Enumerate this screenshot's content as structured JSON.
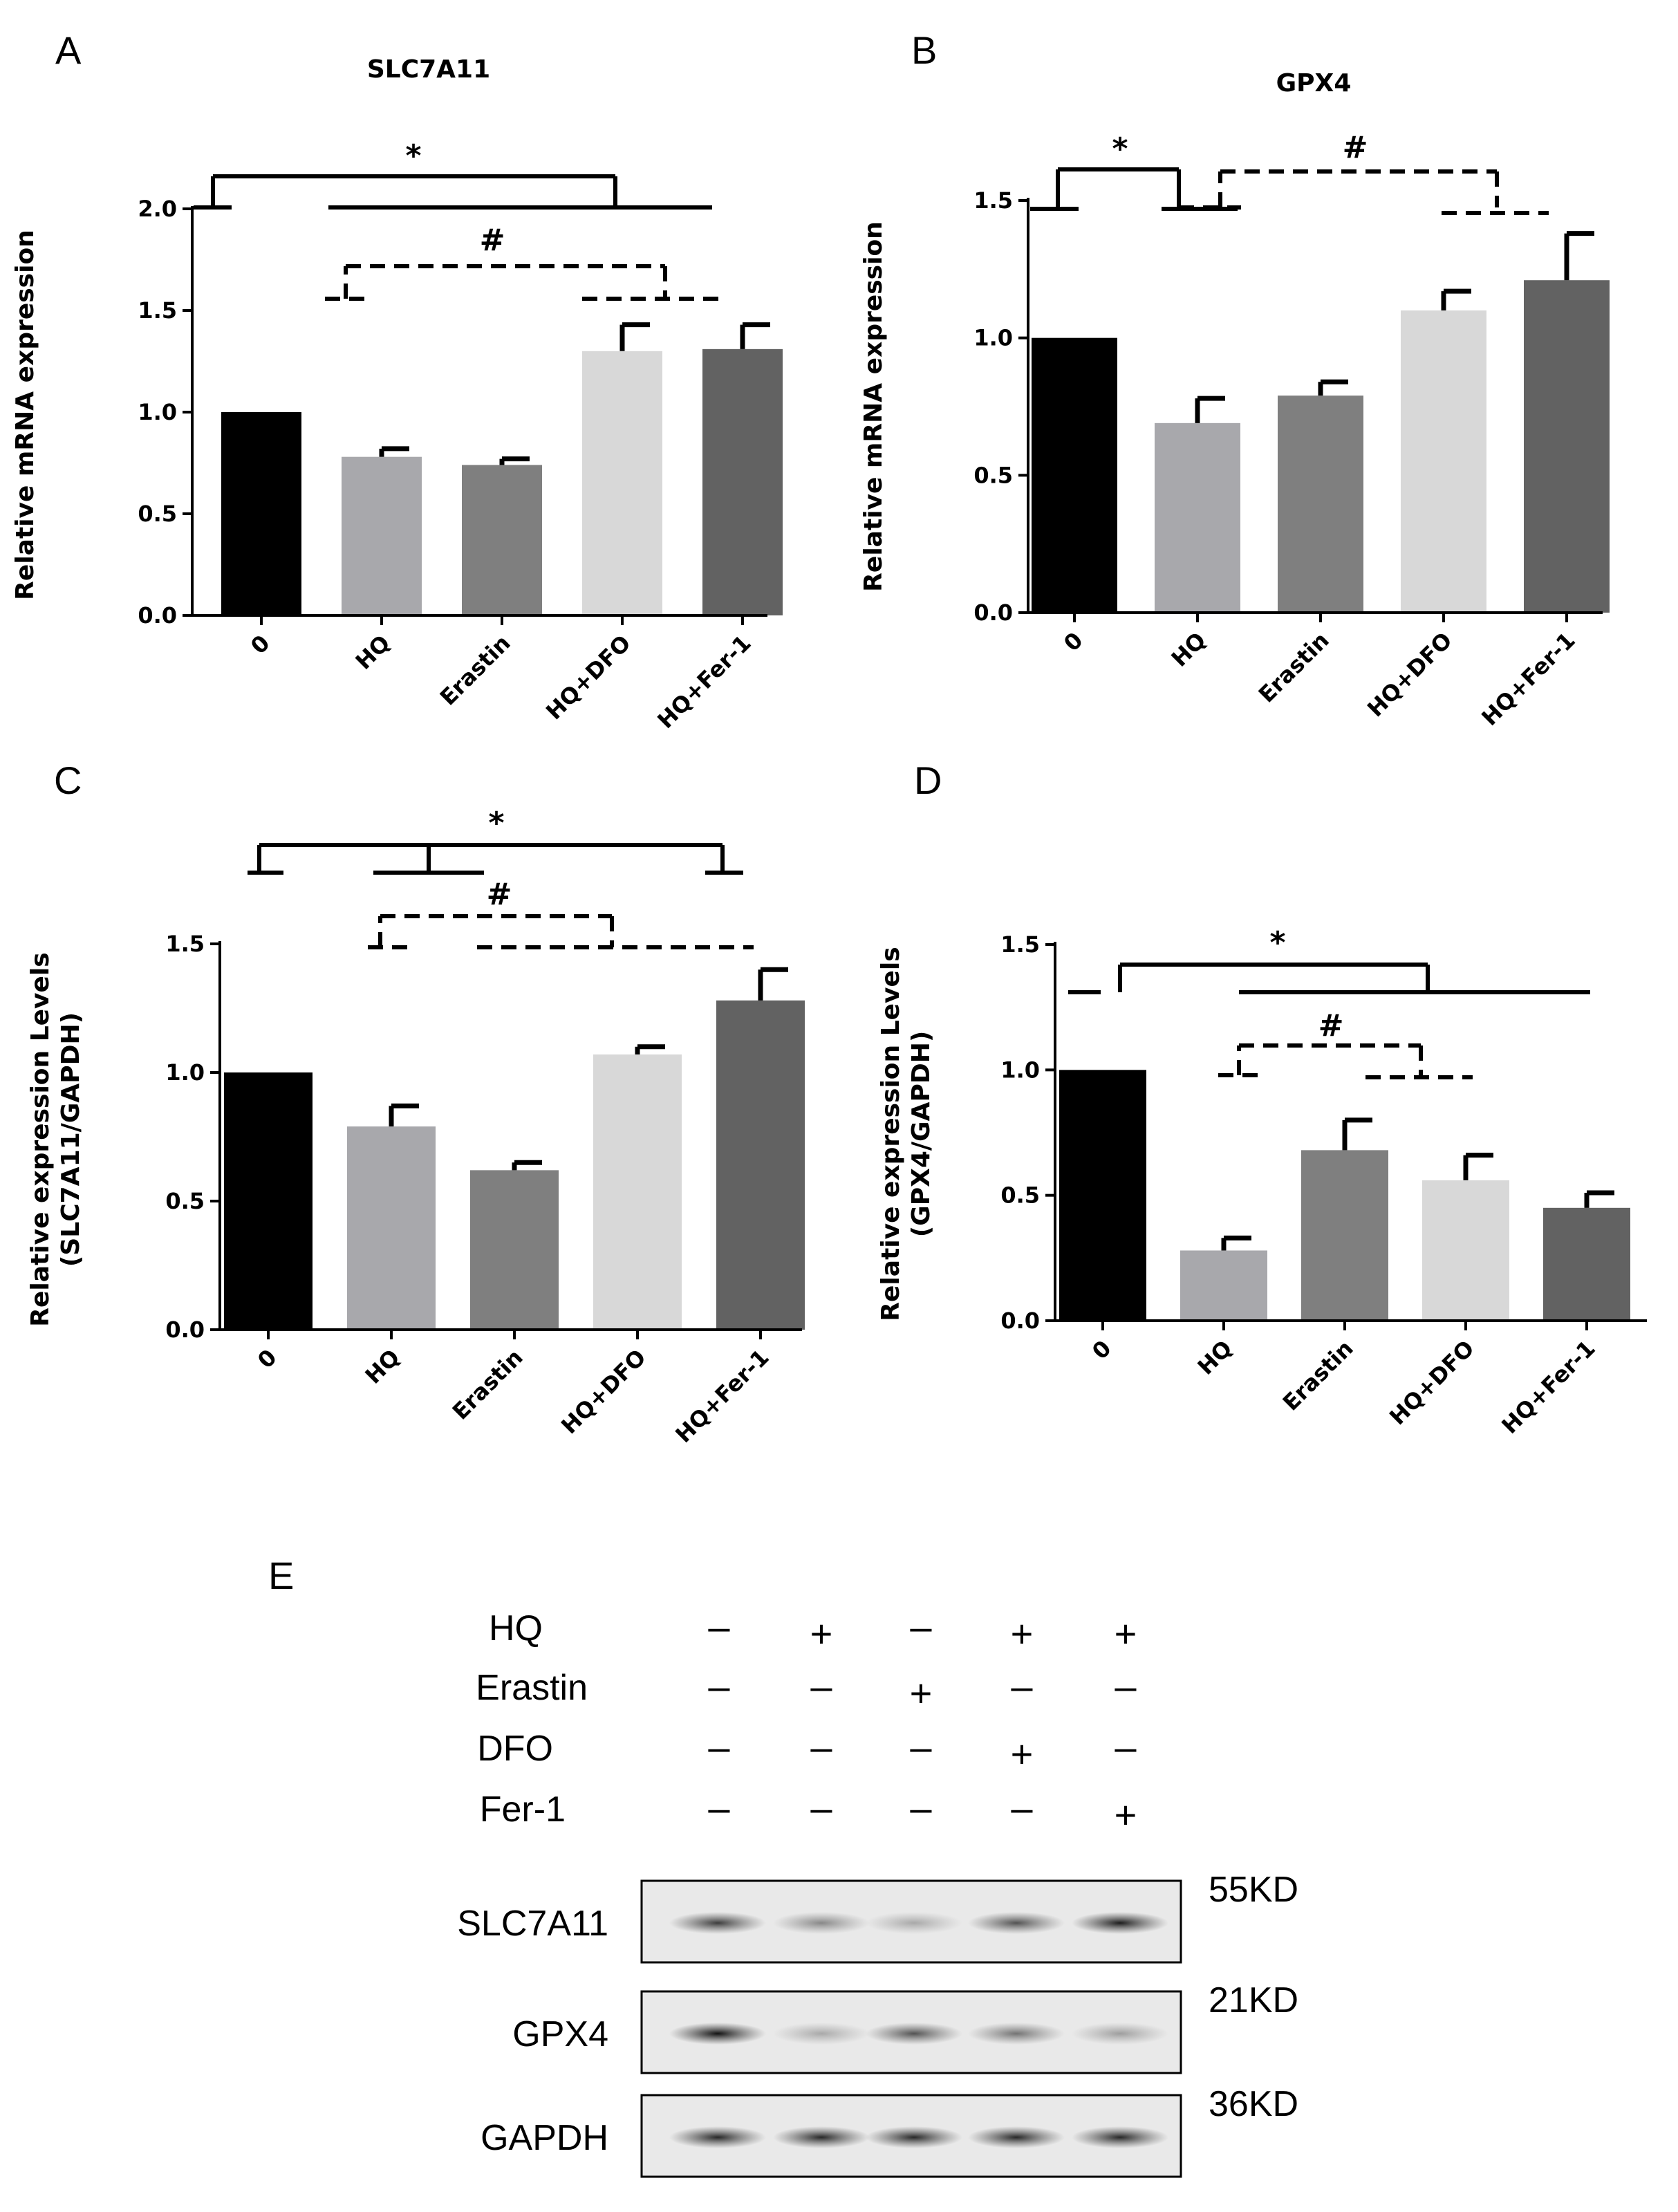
{
  "chart_data": [
    {
      "panel": "A",
      "type": "bar",
      "title": "SLC7A11",
      "ylabel": "Relative mRNA expression",
      "xlabel": "",
      "categories": [
        "0",
        "HQ",
        "Erastin",
        "HQ+DFO",
        "HQ+Fer-1"
      ],
      "values": [
        1.0,
        0.78,
        0.74,
        1.3,
        1.31
      ],
      "errors": [
        0,
        0.04,
        0.03,
        0.13,
        0.12
      ],
      "colors": [
        "#000000",
        "#a8a8ac",
        "#7f7f7f",
        "#d8d8d8",
        "#626262"
      ],
      "ylim": [
        0,
        2.0
      ],
      "yticks": [
        "0.0",
        "0.5",
        "1.0",
        "1.5",
        "2.0"
      ],
      "significance": [
        "*",
        "#"
      ]
    },
    {
      "panel": "B",
      "type": "bar",
      "title": "GPX4",
      "ylabel": "Relative mRNA expression",
      "xlabel": "",
      "categories": [
        "0",
        "HQ",
        "Erastin",
        "HQ+DFO",
        "HQ+Fer-1"
      ],
      "values": [
        1.0,
        0.69,
        0.79,
        1.1,
        1.21
      ],
      "errors": [
        0,
        0.09,
        0.05,
        0.07,
        0.17
      ],
      "colors": [
        "#000000",
        "#a8a8ac",
        "#7f7f7f",
        "#d8d8d8",
        "#626262"
      ],
      "ylim": [
        0,
        1.5
      ],
      "yticks": [
        "0.0",
        "0.5",
        "1.0",
        "1.5"
      ],
      "significance": [
        "*",
        "#"
      ]
    },
    {
      "panel": "C",
      "type": "bar",
      "title": "",
      "ylabel": "Relative expression Levels",
      "ylabel2": "(SLC7A11/GAPDH)",
      "xlabel": "",
      "categories": [
        "0",
        "HQ",
        "Erastin",
        "HQ+DFO",
        "HQ+Fer-1"
      ],
      "values": [
        1.0,
        0.79,
        0.62,
        1.07,
        1.28
      ],
      "errors": [
        0,
        0.08,
        0.03,
        0.03,
        0.12
      ],
      "colors": [
        "#000000",
        "#a8a8ac",
        "#7f7f7f",
        "#d8d8d8",
        "#626262"
      ],
      "ylim": [
        0,
        1.5
      ],
      "yticks": [
        "0.0",
        "0.5",
        "1.0",
        "1.5"
      ],
      "significance": [
        "*",
        "#"
      ]
    },
    {
      "panel": "D",
      "type": "bar",
      "title": "",
      "ylabel": "Relative expression Levels",
      "ylabel2": "(GPX4/GAPDH)",
      "xlabel": "",
      "categories": [
        "0",
        "HQ",
        "Erastin",
        "HQ+DFO",
        "HQ+Fer-1"
      ],
      "values": [
        1.0,
        0.28,
        0.68,
        0.56,
        0.45
      ],
      "errors": [
        0,
        0.05,
        0.12,
        0.1,
        0.06
      ],
      "colors": [
        "#000000",
        "#a8a8ac",
        "#7f7f7f",
        "#d8d8d8",
        "#626262"
      ],
      "ylim": [
        0,
        1.5
      ],
      "yticks": [
        "0.0",
        "0.5",
        "1.0",
        "1.5"
      ],
      "significance": [
        "*",
        "#"
      ]
    }
  ],
  "western_blot": {
    "panel": "E",
    "treatments": [
      {
        "name": "HQ",
        "signs": [
          "–",
          "+",
          "–",
          "+",
          "+"
        ]
      },
      {
        "name": "Erastin",
        "signs": [
          "–",
          "–",
          "+",
          "–",
          "–"
        ]
      },
      {
        "name": "DFO",
        "signs": [
          "–",
          "–",
          "–",
          "+",
          "–"
        ]
      },
      {
        "name": "Fer-1",
        "signs": [
          "–",
          "–",
          "–",
          "–",
          "+"
        ]
      }
    ],
    "blots": [
      {
        "protein": "SLC7A11",
        "size": "55KD",
        "intensities": [
          0.8,
          0.45,
          0.3,
          0.7,
          0.95
        ]
      },
      {
        "protein": "GPX4",
        "size": "21KD",
        "intensities": [
          1.0,
          0.3,
          0.7,
          0.55,
          0.35
        ]
      },
      {
        "protein": "GAPDH",
        "size": "36KD",
        "intensities": [
          0.9,
          0.9,
          0.9,
          0.9,
          0.9
        ]
      }
    ]
  }
}
